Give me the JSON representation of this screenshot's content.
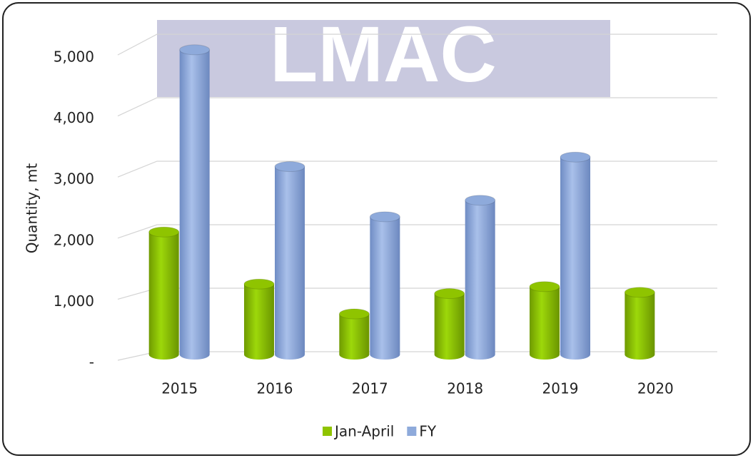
{
  "chart_data": {
    "type": "bar3d",
    "watermark": "LMAC",
    "y_label": "Quantity, mt",
    "categories": [
      "2015",
      "2016",
      "2017",
      "2018",
      "2019",
      "2020"
    ],
    "series": [
      {
        "name": "Jan-April",
        "color": "#8fc400",
        "values": [
          1930,
          1110,
          640,
          960,
          1070,
          980
        ]
      },
      {
        "name": "FY",
        "color": "#8eaadb",
        "values": [
          4800,
          2960,
          2170,
          2430,
          3110,
          null
        ]
      }
    ],
    "ylim": [
      0,
      5000
    ],
    "yticks": [
      {
        "value": 0,
        "label": "-"
      },
      {
        "value": 1000,
        "label": "1,000"
      },
      {
        "value": 2000,
        "label": "2,000"
      },
      {
        "value": 3000,
        "label": "3,000"
      },
      {
        "value": 4000,
        "label": "4,000"
      },
      {
        "value": 5000,
        "label": "5,000"
      }
    ],
    "grid": true,
    "legend": "bottom"
  }
}
